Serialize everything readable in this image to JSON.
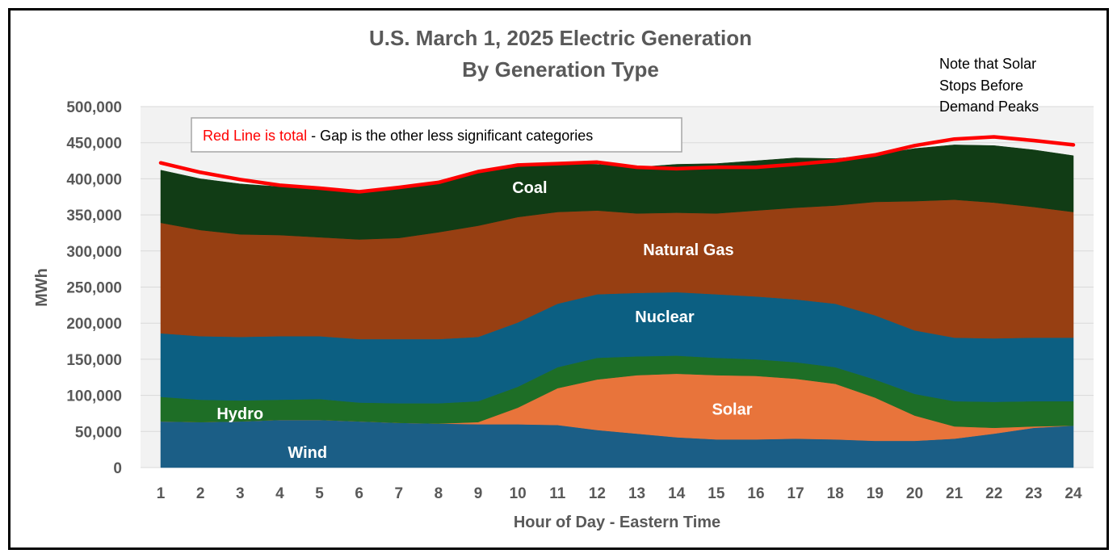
{
  "chart_data": {
    "type": "area",
    "title": [
      "U.S. March 1, 2025  Electric Generation",
      "By Generation Type"
    ],
    "xlabel": "Hour of Day - Eastern Time",
    "ylabel": "MWh",
    "x": [
      1,
      2,
      3,
      4,
      5,
      6,
      7,
      8,
      9,
      10,
      11,
      12,
      13,
      14,
      15,
      16,
      17,
      18,
      19,
      20,
      21,
      22,
      23,
      24
    ],
    "ylim": [
      0,
      500000
    ],
    "y_ticks": [
      0,
      50000,
      100000,
      150000,
      200000,
      250000,
      300000,
      350000,
      400000,
      450000,
      500000
    ],
    "y_tick_labels": [
      "0",
      "50,000",
      "100,000",
      "150,000",
      "200,000",
      "250,000",
      "300,000",
      "350,000",
      "400,000",
      "450,000",
      "500,000"
    ],
    "grid": true,
    "stacked": true,
    "series": [
      {
        "name": "Wind",
        "color": "#1b5e86",
        "values": [
          64000,
          63000,
          64000,
          66000,
          66000,
          64000,
          62000,
          61000,
          60000,
          60000,
          59000,
          52000,
          47000,
          42000,
          39000,
          39000,
          40000,
          39000,
          37000,
          37000,
          40000,
          47000,
          55000,
          58000
        ]
      },
      {
        "name": "Solar",
        "color": "#e8743b",
        "values": [
          0,
          0,
          0,
          0,
          0,
          0,
          0,
          0,
          3000,
          23000,
          51000,
          70000,
          81000,
          88000,
          89000,
          88000,
          83000,
          77000,
          60000,
          35000,
          17000,
          8000,
          2000,
          0
        ]
      },
      {
        "name": "Hydro",
        "color": "#1e6e26",
        "values": [
          34000,
          31000,
          29000,
          28000,
          29000,
          26000,
          27000,
          28000,
          29000,
          29000,
          29000,
          30000,
          26000,
          25000,
          24000,
          23000,
          23000,
          23000,
          25000,
          30000,
          35000,
          36000,
          35000,
          34000
        ]
      },
      {
        "name": "Nuclear",
        "color": "#0c5f82",
        "values": [
          88000,
          88000,
          88000,
          88000,
          87000,
          88000,
          89000,
          89000,
          89000,
          89000,
          88000,
          88000,
          88000,
          88000,
          88000,
          87000,
          87000,
          88000,
          89000,
          88000,
          88000,
          88000,
          88000,
          88000
        ]
      },
      {
        "name": "Natural Gas",
        "color": "#973f12",
        "values": [
          153000,
          147000,
          142000,
          140000,
          137000,
          138000,
          140000,
          148000,
          154000,
          146000,
          127000,
          116000,
          110000,
          110000,
          112000,
          119000,
          127000,
          136000,
          157000,
          179000,
          191000,
          188000,
          181000,
          174000
        ]
      },
      {
        "name": "Coal",
        "color": "#113c15",
        "values": [
          73000,
          71000,
          70000,
          67000,
          66000,
          64000,
          68000,
          71000,
          75000,
          72000,
          67000,
          64000,
          64000,
          67000,
          69000,
          69000,
          69000,
          65000,
          65000,
          73000,
          76000,
          79000,
          79000,
          78000
        ]
      }
    ],
    "total": {
      "name": "Total",
      "color": "#ff0000",
      "values": [
        422000,
        409000,
        399000,
        391000,
        387000,
        382000,
        388000,
        395000,
        410000,
        419000,
        421000,
        423000,
        416000,
        414000,
        416000,
        416000,
        420000,
        425000,
        433000,
        446000,
        455000,
        458000,
        453000,
        447000
      ]
    },
    "area_labels": [
      {
        "text": "Coal",
        "x": 10.3,
        "y": 388000
      },
      {
        "text": "Natural Gas",
        "x": 14.3,
        "y": 302000
      },
      {
        "text": "Nuclear",
        "x": 13.7,
        "y": 209000
      },
      {
        "text": "Solar",
        "x": 15.4,
        "y": 81000
      },
      {
        "text": "Hydro",
        "x": 3.0,
        "y": 75000
      },
      {
        "text": "Wind",
        "x": 4.7,
        "y": 21000
      }
    ],
    "callout": {
      "red_text": "Red Line is total",
      "rest_text": " - Gap is the other less significant categories"
    },
    "note": [
      "Note that Solar",
      "Stops Before",
      "Demand Peaks"
    ]
  }
}
